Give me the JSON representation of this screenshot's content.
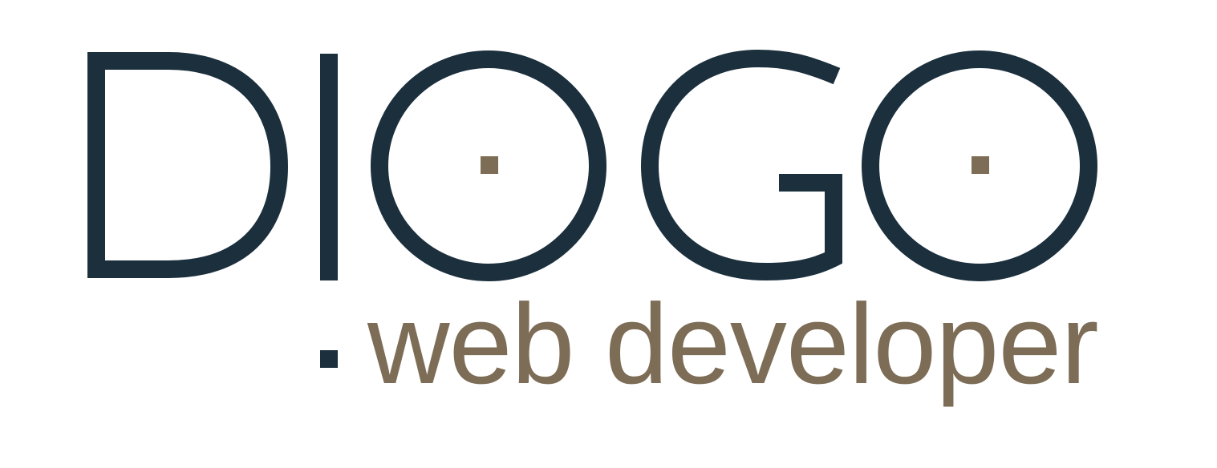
{
  "logo": {
    "wordmark": "DIOGO",
    "tagline": "web developer",
    "colors": {
      "primary": "#1b2f3d",
      "accent": "#7d6d56",
      "background": "#ffffff"
    }
  }
}
